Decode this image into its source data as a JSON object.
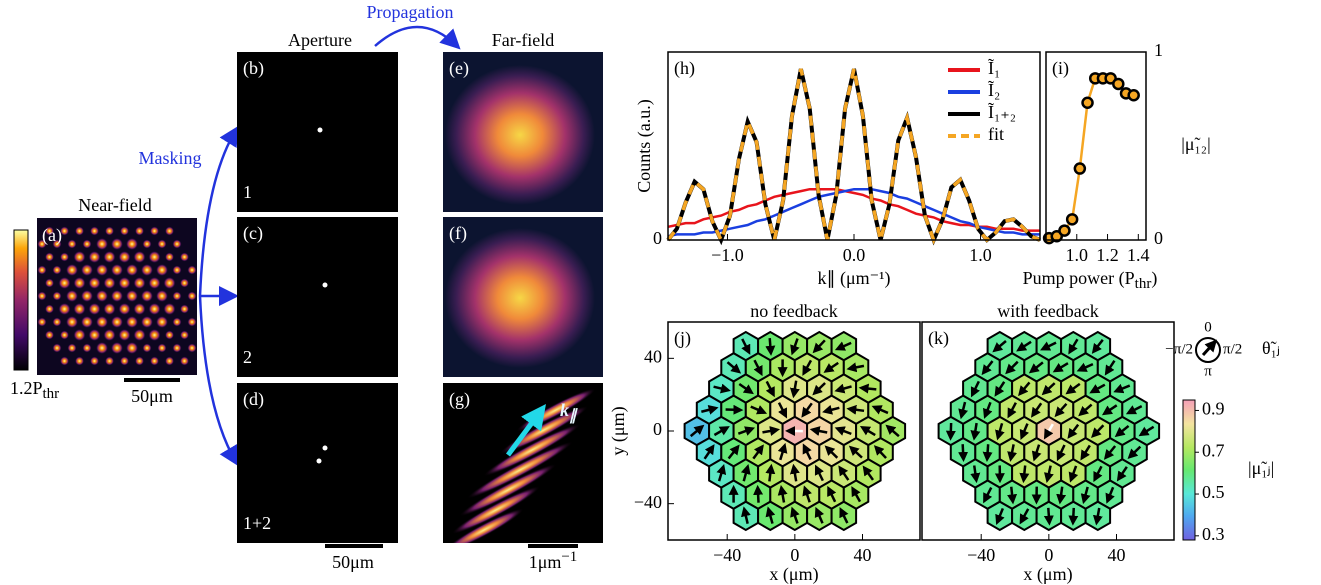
{
  "figure": {
    "propagation": "Propagation",
    "masking": "Masking",
    "aperture": "Aperture",
    "far_field": "Far-field",
    "near_field": "Near-field",
    "labels": {
      "a": "(a)",
      "b": "(b)",
      "c": "(c)",
      "d": "(d)",
      "e": "(e)",
      "f": "(f)",
      "g": "(g)"
    },
    "apertures": [
      "1",
      "2",
      "1+2"
    ],
    "power": "1.2P",
    "power_sub": "thr",
    "scale_near": "50μm",
    "scale_aperture": "50μm",
    "scale_far": "1μm",
    "scale_far_sup": "−1",
    "k_vector": "k",
    "k_vector_sub": "∥"
  },
  "chart_data": [
    {
      "type": "line",
      "label": "(h)",
      "xlabel": "k∥ (μm⁻¹)",
      "ylabel": "Counts (a.u.)",
      "x": [
        -1.47,
        -1.4,
        -1.33,
        -1.26,
        -1.19,
        -1.12,
        -1.05,
        -0.98,
        -0.91,
        -0.84,
        -0.77,
        -0.7,
        -0.63,
        -0.56,
        -0.49,
        -0.42,
        -0.35,
        -0.28,
        -0.21,
        -0.14,
        -0.07,
        0,
        0.07,
        0.14,
        0.21,
        0.28,
        0.35,
        0.42,
        0.49,
        0.56,
        0.63,
        0.7,
        0.77,
        0.84,
        0.91,
        0.98,
        1.05,
        1.12,
        1.19,
        1.26,
        1.33,
        1.4,
        1.47
      ],
      "xlim": [
        -1.47,
        1.47
      ],
      "xticks": [
        {
          "value": -1,
          "label": "−1.0"
        },
        {
          "value": 0,
          "label": "0.0"
        },
        {
          "value": 1,
          "label": "1.0"
        }
      ],
      "ylim": [
        0,
        1
      ],
      "yticks": [
        0
      ],
      "legend": "upper right",
      "series": [
        {
          "name": "Ĩ₁",
          "color": "#e8141c",
          "values": [
            0.07,
            0.08,
            0.09,
            0.09,
            0.11,
            0.12,
            0.13,
            0.15,
            0.16,
            0.18,
            0.19,
            0.21,
            0.23,
            0.24,
            0.25,
            0.26,
            0.27,
            0.27,
            0.27,
            0.27,
            0.26,
            0.25,
            0.24,
            0.22,
            0.21,
            0.19,
            0.18,
            0.16,
            0.14,
            0.13,
            0.12,
            0.1,
            0.09,
            0.08,
            0.08,
            0.07,
            0.07,
            0.06,
            0.06,
            0.06,
            0.05,
            0.05,
            0.05
          ]
        },
        {
          "name": "Ĩ₂",
          "color": "#1a3fe0",
          "values": [
            0.02,
            0.03,
            0.03,
            0.03,
            0.04,
            0.04,
            0.05,
            0.06,
            0.07,
            0.08,
            0.1,
            0.11,
            0.13,
            0.15,
            0.17,
            0.19,
            0.21,
            0.23,
            0.24,
            0.25,
            0.26,
            0.27,
            0.27,
            0.27,
            0.26,
            0.25,
            0.23,
            0.22,
            0.2,
            0.18,
            0.16,
            0.14,
            0.12,
            0.1,
            0.09,
            0.07,
            0.06,
            0.05,
            0.04,
            0.04,
            0.03,
            0.03,
            0.03
          ]
        },
        {
          "name": "Ĩ₁₊₂",
          "color": "#000000",
          "values": [
            0,
            0.06,
            0.2,
            0.31,
            0.27,
            0.1,
            0,
            0.13,
            0.43,
            0.63,
            0.52,
            0.19,
            0,
            0.21,
            0.66,
            0.91,
            0.7,
            0.24,
            0,
            0.24,
            0.7,
            0.91,
            0.66,
            0.21,
            0,
            0.19,
            0.53,
            0.65,
            0.44,
            0.13,
            0,
            0.11,
            0.28,
            0.32,
            0.21,
            0.06,
            0,
            0.04,
            0.1,
            0.11,
            0.07,
            0.02,
            0
          ]
        },
        {
          "name": "fit",
          "color": "#f5a623",
          "dashed": true,
          "values": [
            0,
            0.06,
            0.2,
            0.31,
            0.27,
            0.1,
            0,
            0.13,
            0.43,
            0.63,
            0.52,
            0.19,
            0,
            0.21,
            0.66,
            0.91,
            0.7,
            0.24,
            0,
            0.24,
            0.7,
            0.91,
            0.66,
            0.21,
            0,
            0.19,
            0.53,
            0.65,
            0.44,
            0.13,
            0,
            0.11,
            0.28,
            0.32,
            0.21,
            0.06,
            0,
            0.04,
            0.1,
            0.11,
            0.07,
            0.02,
            0
          ]
        }
      ]
    },
    {
      "type": "scatter",
      "label": "(i)",
      "xlabel": "Pump power (P",
      "xlabel_sub": "thr",
      "xlabel_end": ")",
      "ylabel": "|μ̃₁₂|",
      "x": [
        0.82,
        0.87,
        0.92,
        0.97,
        1.02,
        1.07,
        1.12,
        1.17,
        1.22,
        1.27,
        1.32,
        1.37
      ],
      "values": [
        0.01,
        0.02,
        0.05,
        0.11,
        0.38,
        0.73,
        0.86,
        0.86,
        0.86,
        0.83,
        0.78,
        0.77
      ],
      "color": "#f5a623",
      "xlim": [
        0.8,
        1.45
      ],
      "xticks": [
        {
          "value": 1,
          "label": "1.0"
        },
        {
          "value": 1.2,
          "label": "1.2"
        },
        {
          "value": 1.4,
          "label": "1.4"
        }
      ],
      "ylim": [
        0,
        1
      ],
      "yticks": [
        0,
        1
      ],
      "y_axis_side": "right"
    },
    {
      "type": "hexmap",
      "label": "(j)",
      "title": "no feedback",
      "xlabel": "x (μm)",
      "ylabel": "y (μm)",
      "xlim": [
        -75,
        74
      ],
      "ylim": [
        -60,
        60
      ],
      "xticks": [
        {
          "value": -40,
          "label": "−40"
        },
        0,
        40
      ],
      "yticks": [
        {
          "value": -40,
          "label": "−40"
        },
        0,
        40
      ]
    },
    {
      "type": "hexmap",
      "label": "(k)",
      "title": "with feedback",
      "xlabel": "x (μm)",
      "xlim": [
        -75,
        74
      ],
      "ylim": [
        -60,
        60
      ],
      "xticks": [
        {
          "value": -40,
          "label": "−40"
        },
        0,
        40
      ],
      "colorbar": {
        "label": "|μ̃₁ⱼ|",
        "lim": [
          0.28,
          0.95
        ],
        "ticks": [
          0.3,
          0.5,
          0.7,
          0.9
        ]
      },
      "phase_legend": {
        "top": "0",
        "right": "π/2",
        "bottom": "π",
        "left": "−π/2",
        "label": "θ̃₁ⱼ"
      }
    }
  ]
}
